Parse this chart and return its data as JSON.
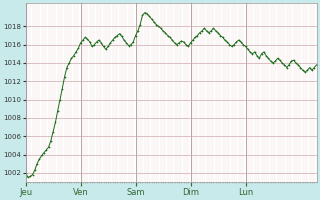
{
  "background_color": "#c8eaea",
  "plot_bg_color": "#ffffff",
  "line_color": "#1a6b1a",
  "grid_major_color": "#ccaaaa",
  "grid_minor_color": "#eedddd",
  "ylim": [
    1001,
    1020.5
  ],
  "yticks": [
    1002,
    1004,
    1006,
    1008,
    1010,
    1012,
    1014,
    1016,
    1018
  ],
  "day_labels": [
    "Jeu",
    "Ven",
    "Sam",
    "Dim",
    "Lun"
  ],
  "day_positions": [
    0,
    24,
    48,
    72,
    96
  ],
  "pressure_data": [
    1002.0,
    1001.5,
    1001.6,
    1001.8,
    1002.3,
    1003.0,
    1003.5,
    1003.9,
    1004.2,
    1004.5,
    1004.8,
    1005.5,
    1006.5,
    1007.5,
    1008.8,
    1010.0,
    1011.2,
    1012.5,
    1013.5,
    1014.0,
    1014.5,
    1014.8,
    1015.2,
    1015.6,
    1016.2,
    1016.5,
    1016.8,
    1016.6,
    1016.3,
    1015.8,
    1016.0,
    1016.3,
    1016.5,
    1016.2,
    1015.8,
    1015.5,
    1015.8,
    1016.2,
    1016.5,
    1016.8,
    1017.0,
    1017.2,
    1016.9,
    1016.5,
    1016.2,
    1015.9,
    1016.0,
    1016.3,
    1017.0,
    1017.5,
    1018.2,
    1019.2,
    1019.5,
    1019.4,
    1019.1,
    1018.8,
    1018.5,
    1018.2,
    1018.0,
    1017.8,
    1017.5,
    1017.3,
    1017.0,
    1016.8,
    1016.5,
    1016.2,
    1016.0,
    1016.2,
    1016.4,
    1016.3,
    1016.0,
    1015.8,
    1016.2,
    1016.5,
    1016.8,
    1017.0,
    1017.3,
    1017.5,
    1017.8,
    1017.5,
    1017.3,
    1017.5,
    1017.8,
    1017.5,
    1017.3,
    1017.0,
    1016.8,
    1016.5,
    1016.3,
    1016.0,
    1015.8,
    1016.0,
    1016.3,
    1016.5,
    1016.3,
    1016.0,
    1015.8,
    1015.5,
    1015.2,
    1015.0,
    1015.2,
    1014.8,
    1014.5,
    1015.0,
    1015.2,
    1014.8,
    1014.5,
    1014.2,
    1014.0,
    1014.2,
    1014.5,
    1014.3,
    1014.0,
    1013.8,
    1013.5,
    1013.8,
    1014.2,
    1014.3,
    1014.0,
    1013.8,
    1013.5,
    1013.2,
    1013.0,
    1013.2,
    1013.5,
    1013.2,
    1013.5,
    1013.8
  ]
}
